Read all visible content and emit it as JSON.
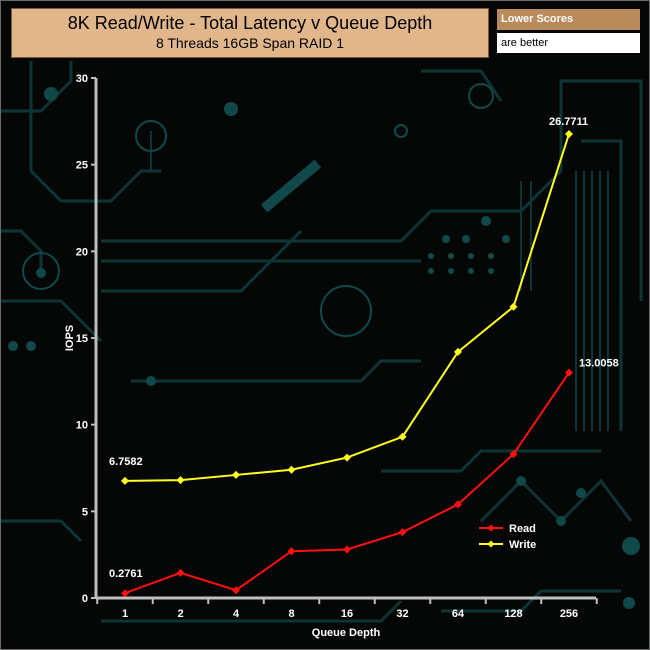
{
  "header": {
    "title": "8K Read/Write - Total Latency v Queue Depth",
    "subtitle": "8 Threads 16GB Span RAID 1"
  },
  "note": {
    "heading": "Lower Scores",
    "text": "are better"
  },
  "chart_data": {
    "type": "line",
    "title": "8K Read/Write - Total Latency v Queue Depth",
    "subtitle": "8 Threads 16GB Span RAID 1",
    "xlabel": "Queue Depth",
    "ylabel": "IOPS",
    "categories": [
      "1",
      "2",
      "4",
      "8",
      "16",
      "32",
      "64",
      "128",
      "256"
    ],
    "ylim": [
      0,
      30
    ],
    "yticks": [
      0,
      5,
      10,
      15,
      20,
      25,
      30
    ],
    "grid": false,
    "legend": "lower-right",
    "series": [
      {
        "name": "Read",
        "color": "#ff1010",
        "values": [
          0.2761,
          1.45,
          0.45,
          2.7,
          2.8,
          3.8,
          5.4,
          8.3,
          13.0058
        ]
      },
      {
        "name": "Write",
        "color": "#ffff20",
        "values": [
          6.7582,
          6.8,
          7.1,
          7.4,
          8.1,
          9.3,
          14.2,
          16.8,
          26.7711
        ]
      }
    ],
    "annotations": [
      {
        "series": 0,
        "index": 0,
        "text": "0.2761"
      },
      {
        "series": 0,
        "index": 8,
        "text": "13.0058"
      },
      {
        "series": 1,
        "index": 0,
        "text": "6.7582"
      },
      {
        "series": 1,
        "index": 8,
        "text": "26.7711"
      }
    ]
  }
}
